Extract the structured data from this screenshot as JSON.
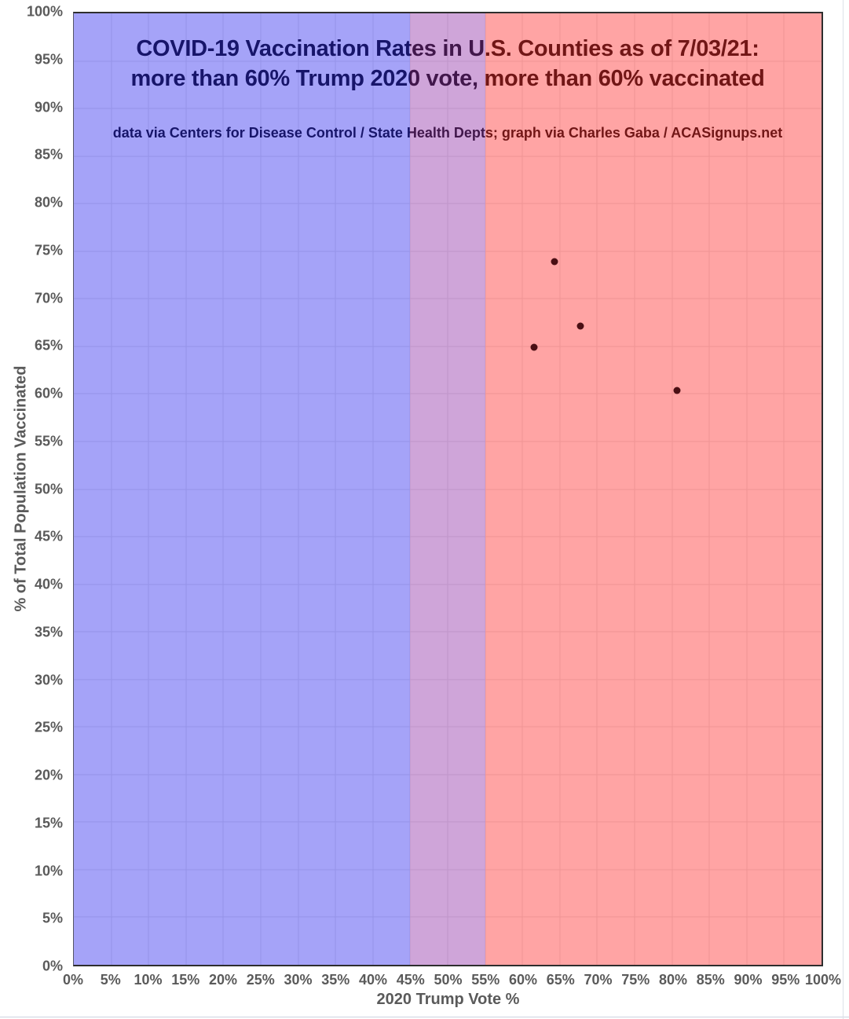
{
  "chart_data": {
    "type": "scatter",
    "title_line1": "COVID-19 Vaccination Rates in U.S. Counties as of 7/03/21:",
    "title_line2": "more than 60% Trump 2020 vote, more than 60% vaccinated",
    "subtitle": "data via Centers for Disease Control / State Health Depts; graph via Charles Gaba / ACASignups.net",
    "xlabel": "2020 Trump Vote %",
    "ylabel": "% of Total Population Vaccinated",
    "xlim": [
      0,
      100
    ],
    "ylim": [
      0,
      100
    ],
    "tick_step": 5,
    "grid": true,
    "legend": "none",
    "x_ticks": [
      "0%",
      "5%",
      "10%",
      "15%",
      "20%",
      "25%",
      "30%",
      "35%",
      "40%",
      "45%",
      "50%",
      "55%",
      "60%",
      "65%",
      "70%",
      "75%",
      "80%",
      "85%",
      "90%",
      "95%",
      "100%"
    ],
    "y_ticks": [
      "0%",
      "5%",
      "10%",
      "15%",
      "20%",
      "25%",
      "30%",
      "35%",
      "40%",
      "45%",
      "50%",
      "55%",
      "60%",
      "65%",
      "70%",
      "75%",
      "80%",
      "85%",
      "90%",
      "95%",
      "100%"
    ],
    "regions": [
      {
        "name": "blue-dem-zone",
        "x_from": 0,
        "x_to": 45,
        "color": "rgba(11,5,236,0.37)",
        "appears_as": "#a4a2f8"
      },
      {
        "name": "purple-swing-zone",
        "x_from": 45,
        "x_to": 55,
        "color": "rgba(125,12,152,0.37)",
        "appears_as": "#cfa5d9"
      },
      {
        "name": "red-gop-zone",
        "x_from": 55,
        "x_to": 100,
        "color": "rgba(255,9,9,0.37)",
        "appears_as": "#ffa4a4"
      }
    ],
    "points": [
      {
        "x": 64.3,
        "y": 73.9
      },
      {
        "x": 67.8,
        "y": 67.1
      },
      {
        "x": 61.6,
        "y": 64.9
      },
      {
        "x": 80.7,
        "y": 60.4
      }
    ],
    "colors": {
      "point": "#4a0f14",
      "title_text": "#1f1f1f",
      "axis_text": "#5a5a5a",
      "gridline": "#e6e6e6",
      "plot_border": "#2e2e2e"
    }
  }
}
